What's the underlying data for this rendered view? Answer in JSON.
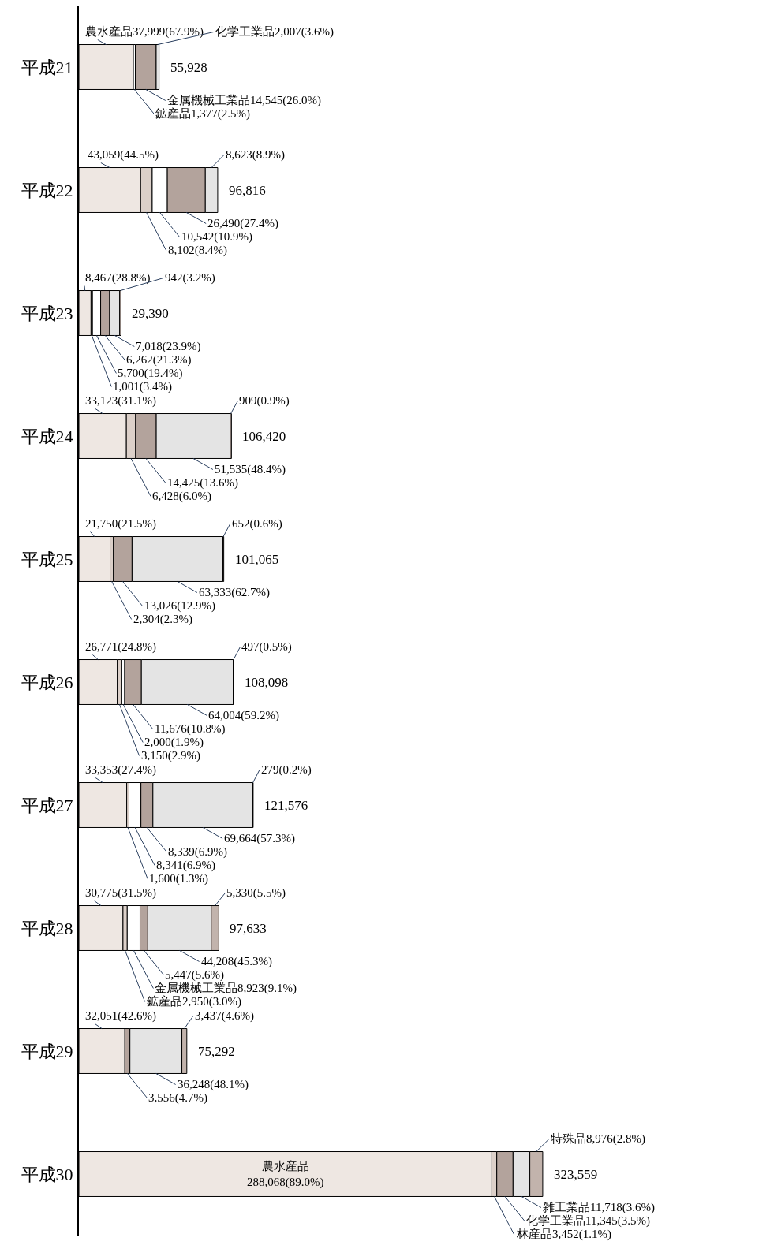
{
  "chart_data": {
    "type": "bar",
    "orientation": "horizontal",
    "stacked": true,
    "tick_labels": "y",
    "categories": [
      "平成21",
      "平成22",
      "平成23",
      "平成24",
      "平成25",
      "平成26",
      "平成27",
      "平成28",
      "平成29",
      "平成30"
    ],
    "series": [
      {
        "color": "#eee7e2",
        "values": [
          37999,
          43059,
          8467,
          33123,
          21750,
          26771,
          33353,
          30775,
          32051,
          288068
        ],
        "value_labels": [
          "農水産品37,999(67.9%)",
          "43,059(44.5%)",
          "8,467(28.8%)",
          "33,123(31.1%)",
          "21,750(21.5%)",
          "26,771(24.8%)",
          "33,353(27.4%)",
          "30,775(31.5%)",
          "32,051(42.6%)",
          "農水産品\n288,068(89.0%)"
        ]
      },
      {
        "color": "#dcd0c9",
        "values": [
          null,
          8102,
          1001,
          6428,
          2304,
          3150,
          1600,
          2950,
          null,
          3452
        ],
        "value_labels": [
          null,
          "8,102(8.4%)",
          "1,001(3.4%)",
          "6,428(6.0%)",
          "2,304(2.3%)",
          "3,150(2.9%)",
          "1,600(1.3%)",
          "鉱産品2,950(3.0%)",
          null,
          "林産品3,452(1.1%)"
        ]
      },
      {
        "color": "#ffffff",
        "values": [
          1377,
          10542,
          5700,
          null,
          null,
          2000,
          8341,
          8923,
          null,
          null
        ],
        "value_labels": [
          "鉱産品1,377(2.5%)",
          "10,542(10.9%)",
          "5,700(19.4%)",
          null,
          null,
          "2,000(1.9%)",
          "8,341(6.9%)",
          "金属機械工業品8,923(9.1%)",
          null,
          null
        ]
      },
      {
        "color": "#b3a39c",
        "values": [
          14545,
          26490,
          6262,
          14425,
          13026,
          11676,
          8339,
          5447,
          3556,
          11345
        ],
        "value_labels": [
          "金属機械工業品14,545(26.0%)",
          "26,490(27.4%)",
          "6,262(21.3%)",
          "14,425(13.6%)",
          "13,026(12.9%)",
          "11,676(10.8%)",
          "8,339(6.9%)",
          "5,447(5.6%)",
          "3,556(4.7%)",
          "化学工業品11,345(3.5%)"
        ]
      },
      {
        "color": "#e4e4e4",
        "values": [
          2007,
          8623,
          7018,
          51535,
          63333,
          64004,
          69664,
          44208,
          36248,
          11718
        ],
        "value_labels": [
          "化学工業品2,007(3.6%)",
          "8,623(8.9%)",
          "7,018(23.9%)",
          "51,535(48.4%)",
          "63,333(62.7%)",
          "64,004(59.2%)",
          "69,664(57.3%)",
          "44,208(45.3%)",
          "36,248(48.1%)",
          "雑工業品11,718(3.6%)"
        ]
      },
      {
        "color": "#c2b3ac",
        "values": [
          null,
          null,
          942,
          909,
          652,
          497,
          279,
          5330,
          3437,
          8976
        ],
        "value_labels": [
          null,
          null,
          "942(3.2%)",
          "909(0.9%)",
          "652(0.6%)",
          "497(0.5%)",
          "279(0.2%)",
          "5,330(5.5%)",
          "3,437(4.6%)",
          "特殊品8,976(2.8%)"
        ]
      }
    ],
    "totals": [
      "55,928",
      "96,816",
      "29,390",
      "106,420",
      "101,065",
      "108,098",
      "121,576",
      "97,633",
      "75,292",
      "323,559"
    ]
  }
}
